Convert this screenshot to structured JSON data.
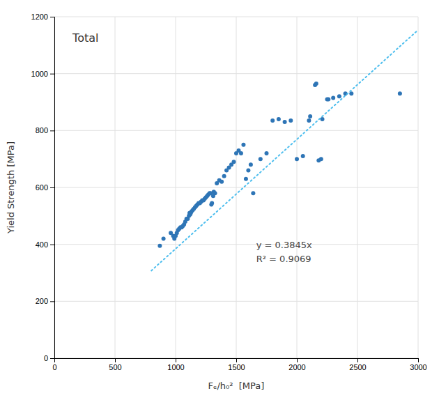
{
  "chart_data": {
    "type": "scatter",
    "xlabel": "Fₑ/h₀²  [MPa]",
    "ylabel": "Yield Strength [MPa]",
    "annotations": [
      "Total",
      "y = 0.3845x",
      "R² = 0.9069"
    ],
    "xlim": [
      0,
      3000
    ],
    "ylim": [
      0,
      1200
    ],
    "xticks": [
      0,
      500,
      1000,
      1500,
      2000,
      2500,
      3000
    ],
    "yticks": [
      0,
      200,
      400,
      600,
      800,
      1000,
      1200
    ],
    "grid": true,
    "series": [
      {
        "type": "scatter",
        "marker": "circle",
        "color": "#2E75B6",
        "x": [
          870,
          900,
          960,
          980,
          990,
          1000,
          1010,
          1020,
          1030,
          1040,
          1050,
          1060,
          1070,
          1080,
          1090,
          1100,
          1110,
          1115,
          1120,
          1125,
          1130,
          1140,
          1150,
          1160,
          1170,
          1180,
          1190,
          1200,
          1210,
          1220,
          1230,
          1240,
          1250,
          1260,
          1270,
          1280,
          1290,
          1295,
          1300,
          1310,
          1315,
          1325,
          1340,
          1360,
          1380,
          1400,
          1420,
          1440,
          1460,
          1480,
          1500,
          1520,
          1540,
          1560,
          1580,
          1600,
          1620,
          1640,
          1700,
          1750,
          1800,
          1850,
          1900,
          1950,
          2000,
          2050,
          2100,
          2110,
          2150,
          2160,
          2180,
          2200,
          2210,
          2250,
          2260,
          2300,
          2350,
          2400,
          2450,
          2850
        ],
        "values": [
          395,
          420,
          440,
          430,
          420,
          430,
          440,
          450,
          455,
          460,
          460,
          465,
          470,
          480,
          490,
          490,
          500,
          510,
          505,
          510,
          515,
          520,
          525,
          530,
          535,
          540,
          545,
          545,
          550,
          555,
          555,
          560,
          565,
          570,
          575,
          580,
          580,
          540,
          545,
          570,
          585,
          580,
          615,
          625,
          620,
          640,
          660,
          670,
          680,
          690,
          720,
          730,
          720,
          750,
          630,
          660,
          680,
          580,
          700,
          720,
          835,
          840,
          830,
          835,
          700,
          710,
          835,
          850,
          960,
          965,
          695,
          700,
          840,
          910,
          910,
          915,
          920,
          930,
          930,
          930
        ]
      },
      {
        "type": "line",
        "line_style": "dotted",
        "color": "#4DBEEE",
        "x": [
          800,
          3000
        ],
        "values": [
          307.6,
          1153.5
        ]
      }
    ]
  }
}
